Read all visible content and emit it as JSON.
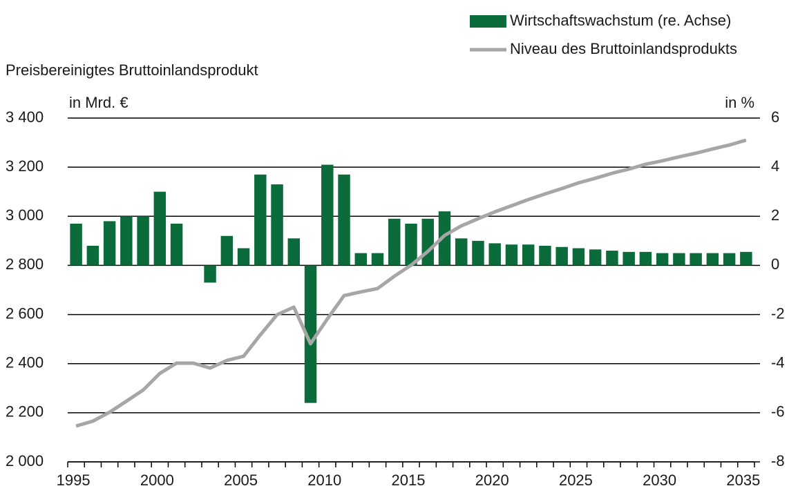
{
  "chart_data": {
    "type": "bar-line",
    "subtitle": "Preisbereinigtes Bruttoinlandsprodukt",
    "y_label": "in Mrd. €",
    "y2_label": "in %",
    "categories": [
      1995,
      null,
      null,
      null,
      null,
      2000,
      null,
      null,
      null,
      null,
      2005,
      null,
      null,
      null,
      null,
      2010,
      null,
      null,
      null,
      null,
      2015,
      null,
      null,
      null,
      null,
      2020,
      null,
      null,
      null,
      null,
      2025,
      null,
      null,
      null,
      null,
      2030,
      null,
      null,
      null,
      null,
      2035
    ],
    "series": [
      {
        "name": "Wirtschaftswachstum (re. Achse)",
        "type": "bar",
        "axis": "y2",
        "color": "#0b6b3a",
        "values": [
          1.7,
          0.8,
          1.8,
          2.0,
          2.0,
          3.0,
          1.7,
          0.0,
          -0.7,
          1.2,
          0.7,
          3.7,
          3.3,
          1.1,
          -5.6,
          4.1,
          3.7,
          0.5,
          0.5,
          1.9,
          1.7,
          1.9,
          2.2,
          1.1,
          1.0,
          0.9,
          0.85,
          0.85,
          0.8,
          0.75,
          0.7,
          0.65,
          0.6,
          0.55,
          0.55,
          0.5,
          0.5,
          0.5,
          0.5,
          0.5,
          0.55
        ]
      },
      {
        "name": "Niveau des Bruttoinlandsprodukts",
        "type": "line",
        "axis": "y",
        "color": "#a6a6a6",
        "values": [
          2146,
          2166,
          2202,
          2247,
          2292,
          2360,
          2402,
          2402,
          2382,
          2413,
          2430,
          2517,
          2599,
          2630,
          2481,
          2582,
          2677,
          2692,
          2706,
          2756,
          2801,
          2857,
          2922,
          2961,
          2990,
          3018,
          3043,
          3068,
          3091,
          3113,
          3136,
          3155,
          3175,
          3192,
          3212,
          3226,
          3242,
          3257,
          3274,
          3290,
          3310
        ]
      }
    ],
    "ylim": [
      2000,
      3400
    ],
    "yticks": [
      {
        "value": 2000,
        "label": "2 000"
      },
      {
        "value": 2200,
        "label": "2 200"
      },
      {
        "value": 2400,
        "label": "2 400"
      },
      {
        "value": 2600,
        "label": "2 600"
      },
      {
        "value": 2800,
        "label": "2 800"
      },
      {
        "value": 3000,
        "label": "3 000"
      },
      {
        "value": 3200,
        "label": "3 200"
      },
      {
        "value": 3400,
        "label": "3 400"
      }
    ],
    "y2lim": [
      -8,
      6
    ],
    "y2ticks": [
      -8,
      -6,
      -4,
      -2,
      0,
      2,
      4,
      6
    ],
    "grid": true,
    "legend": "top-right"
  }
}
